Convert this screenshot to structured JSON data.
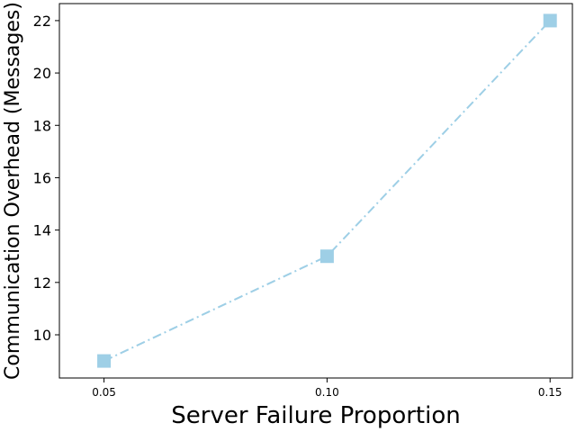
{
  "chart_data": {
    "type": "line",
    "title": "",
    "xlabel": "Server Failure Proportion",
    "ylabel": "Communication Overhead (Messages)",
    "x": [
      0.05,
      0.1,
      0.15
    ],
    "x_tick_labels": [
      "0.05",
      "0.10",
      "0.15"
    ],
    "y_ticks": [
      10,
      12,
      14,
      16,
      18,
      20,
      22
    ],
    "y_tick_labels": [
      "10",
      "12",
      "14",
      "16",
      "18",
      "20",
      "22"
    ],
    "xlim": [
      0.04,
      0.155
    ],
    "ylim": [
      8.35,
      22.65
    ],
    "grid": false,
    "legend": "none",
    "series": [
      {
        "values": [
          9,
          13,
          22
        ],
        "color": "#9ecfe6",
        "line_style": "dash-dot",
        "marker": "square"
      }
    ]
  }
}
